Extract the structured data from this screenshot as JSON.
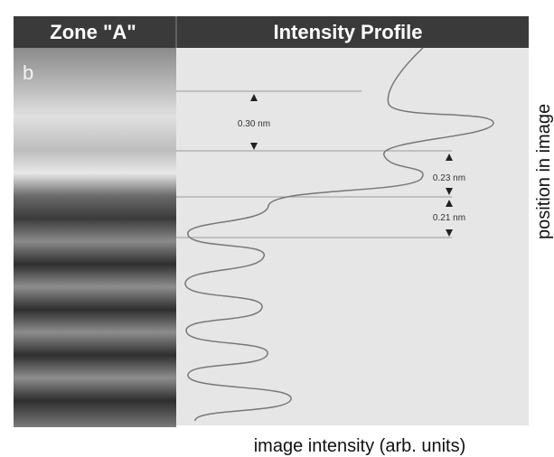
{
  "header": {
    "left": "Zone \"A\"",
    "right": "Intensity Profile"
  },
  "panel_label": "b",
  "annotations": [
    "0.30 nm",
    "0.23 nm",
    "0.21 nm"
  ],
  "axis_labels": {
    "x": "image intensity (arb. units)",
    "y": "position in image"
  }
}
